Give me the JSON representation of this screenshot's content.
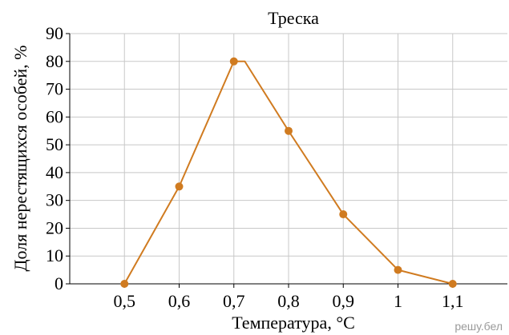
{
  "chart_data": {
    "type": "line",
    "title": "Треска",
    "xlabel": "Температура, °C",
    "ylabel": "Доля нерестящихся особей, %",
    "x": [
      0.5,
      0.6,
      0.7,
      0.72,
      0.8,
      0.9,
      1.0,
      1.1
    ],
    "markers": [
      true,
      true,
      true,
      false,
      true,
      true,
      true,
      true
    ],
    "series": [
      {
        "values": [
          0,
          35,
          80,
          80,
          55,
          25,
          5,
          0
        ]
      }
    ],
    "x_ticks": [
      0.5,
      0.6,
      0.7,
      0.8,
      0.9,
      1.0,
      1.1
    ],
    "x_tick_labels": [
      "0,5",
      "0,6",
      "0,7",
      "0,8",
      "0,9",
      "1",
      "1,1"
    ],
    "y_ticks": [
      0,
      10,
      20,
      30,
      40,
      50,
      60,
      70,
      80,
      90
    ],
    "y_tick_labels": [
      "0",
      "10",
      "20",
      "30",
      "40",
      "50",
      "60",
      "70",
      "80",
      "90"
    ],
    "xlim": [
      0.4,
      1.2
    ],
    "ylim": [
      0,
      90
    ],
    "grid": true,
    "legend": "none",
    "line_color": "#d07b20",
    "marker_color": "#d07b20",
    "grid_color": "#c8c8c8"
  },
  "watermark": "решу.бел"
}
